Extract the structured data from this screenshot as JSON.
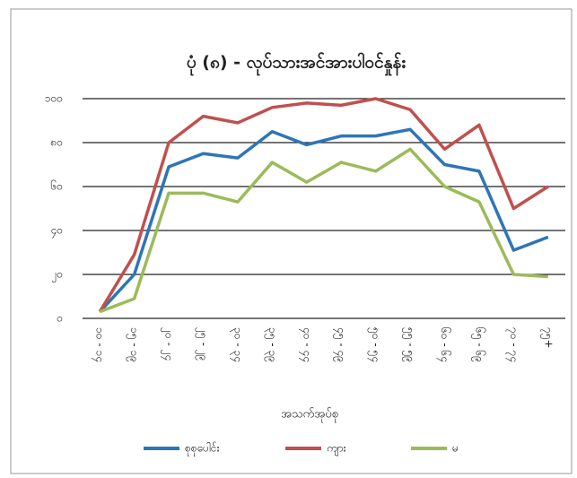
{
  "chart_data": {
    "type": "line",
    "title": "ပုံ (၈) - လုပ်သားအင်အားပါဝင်နှုန်း",
    "x_label": "အသက်အုပ်စု",
    "categories": [
      "၁၀ - ၁၄",
      "၁၅ - ၁၉",
      "၂၀ - ၂၄",
      "၂၅ - ၂၉",
      "၃၀ - ၃၄",
      "၃၅ - ၃၉",
      "၄၀ - ၄၄",
      "၄၅ - ၄၉",
      "၅၀ - ၅၄",
      "၅၅ - ၅၉",
      "၆၀ - ၆၄",
      "၆၅ - ၆၉",
      "၇၀ - ၇၄",
      "၇၅+"
    ],
    "series": [
      {
        "name": "စုစုပေါင်း",
        "color": "#2e75b6",
        "values": [
          3,
          20,
          69,
          75,
          73,
          85,
          79,
          83,
          83,
          86,
          70,
          67,
          31,
          37
        ]
      },
      {
        "name": "ကျား",
        "color": "#c0504d",
        "values": [
          3,
          29,
          80,
          92,
          89,
          96,
          98,
          97,
          100,
          95,
          77,
          88,
          50,
          60
        ]
      },
      {
        "name": "မ",
        "color": "#9bbb59",
        "values": [
          3,
          9,
          57,
          57,
          53,
          71,
          62,
          71,
          67,
          77,
          60,
          53,
          20,
          19
        ]
      }
    ],
    "ylim": [
      0,
      100
    ],
    "yticks": [
      {
        "value": 0,
        "label": "၀"
      },
      {
        "value": 20,
        "label": "၂၀"
      },
      {
        "value": 40,
        "label": "၄၀"
      },
      {
        "value": 60,
        "label": "၆၀"
      },
      {
        "value": 80,
        "label": "၈၀"
      },
      {
        "value": 100,
        "label": "၁၀၀"
      }
    ],
    "grid": true,
    "legend": "bottom"
  }
}
